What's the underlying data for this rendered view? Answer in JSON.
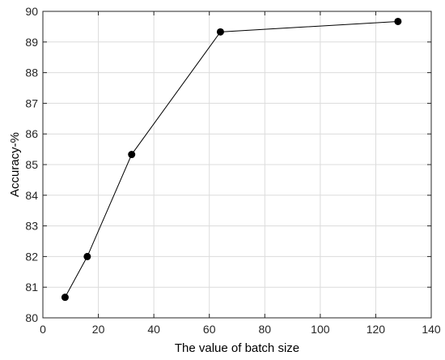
{
  "chart_data": {
    "type": "line",
    "title": "",
    "xlabel": "The value of batch size",
    "ylabel": "Accuracy-%",
    "xlim": [
      0,
      140
    ],
    "ylim": [
      80,
      90
    ],
    "xticks": [
      0,
      20,
      40,
      60,
      80,
      100,
      120,
      140
    ],
    "yticks": [
      80,
      81,
      82,
      83,
      84,
      85,
      86,
      87,
      88,
      89,
      90
    ],
    "grid": true,
    "legend": "none",
    "series": [
      {
        "x": [
          8,
          16,
          32,
          64,
          128
        ],
        "values": [
          80.67,
          82.0,
          85.33,
          89.33,
          89.67
        ],
        "color": "#000000",
        "marker": "filled-circle"
      }
    ]
  }
}
